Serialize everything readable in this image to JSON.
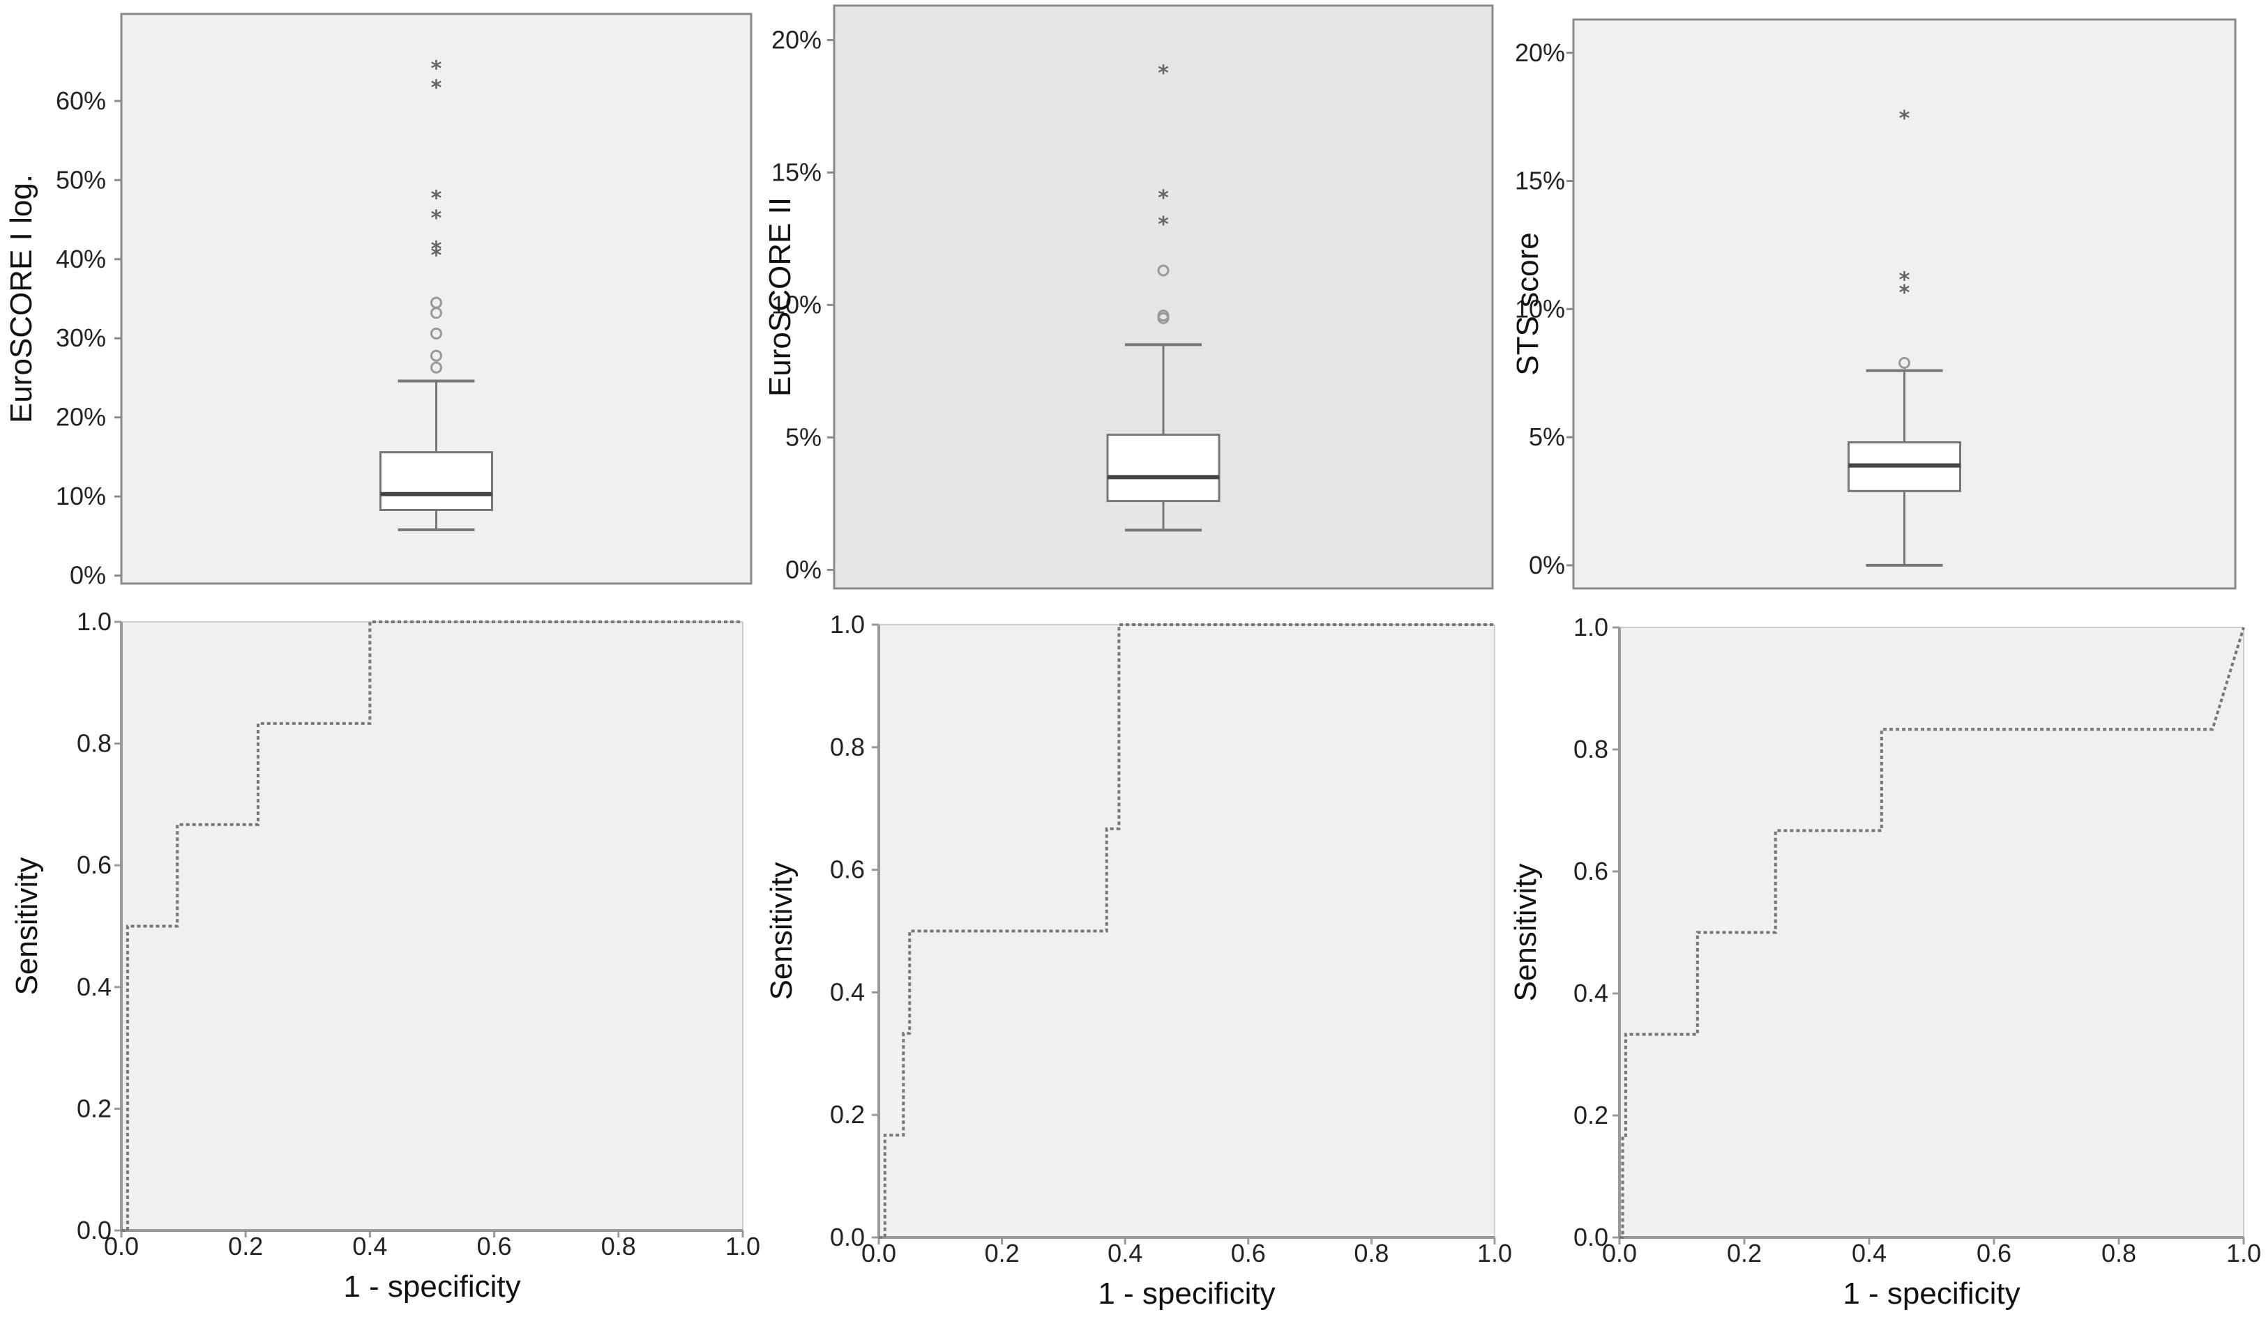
{
  "chart_data": [
    {
      "type": "boxplot",
      "ylabel": "EuroSCORE I log.",
      "xlabel": "",
      "ylim": [
        -1,
        71
      ],
      "yticks": [
        0,
        10,
        20,
        30,
        40,
        50,
        60
      ],
      "ytick_labels": [
        "0%",
        "10%",
        "20%",
        "30%",
        "40%",
        "50%",
        "60%"
      ],
      "box": {
        "whisker_low": 5.8,
        "q1": 8.3,
        "median": 10.3,
        "q3": 15.6,
        "whisker_high": 24.6
      },
      "outliers": [
        26.3,
        27.8,
        30.6,
        33.2,
        34.5
      ],
      "extremes": [
        41.0,
        41.8,
        45.7,
        48.2,
        62.2,
        64.6
      ],
      "background": "#f0f0f0"
    },
    {
      "type": "boxplot",
      "ylabel": "EuroSCORE II",
      "xlabel": "",
      "ylim": [
        -0.7,
        21.3
      ],
      "yticks": [
        0,
        5,
        10,
        15,
        20
      ],
      "ytick_labels": [
        "0%",
        "5%",
        "10%",
        "15%",
        "20%"
      ],
      "box": {
        "whisker_low": 1.5,
        "q1": 2.6,
        "median": 3.5,
        "q3": 5.1,
        "whisker_high": 8.5
      },
      "outliers": [
        9.5,
        9.6,
        11.3
      ],
      "extremes": [
        13.2,
        14.2,
        18.9
      ],
      "background": "#e6e6e6"
    },
    {
      "type": "boxplot",
      "ylabel": "STS score",
      "xlabel": "",
      "ylim": [
        -0.9,
        21.3
      ],
      "yticks": [
        0,
        5,
        10,
        15,
        20
      ],
      "ytick_labels": [
        "0%",
        "5%",
        "10%",
        "15%",
        "20%"
      ],
      "box": {
        "whisker_low": 0.0,
        "q1": 2.9,
        "median": 3.9,
        "q3": 4.8,
        "whisker_high": 7.6
      },
      "outliers": [
        7.9
      ],
      "extremes": [
        10.8,
        11.3,
        17.6
      ],
      "background": "#f0f0f0"
    },
    {
      "type": "line",
      "xlabel": "1 - specificity",
      "ylabel": "Sensitivity",
      "xlim": [
        0,
        1
      ],
      "ylim": [
        0,
        1
      ],
      "xticks": [
        "0.0",
        "0.2",
        "0.4",
        "0.6",
        "0.8",
        "1.0"
      ],
      "yticks": [
        "0.0",
        "0.2",
        "0.4",
        "0.6",
        "0.8",
        "1.0"
      ],
      "series": [
        {
          "x": [
            0,
            0.01,
            0.01,
            0.09,
            0.09,
            0.22,
            0.22,
            0.4,
            0.4,
            1.0
          ],
          "y": [
            0,
            0,
            0.5,
            0.5,
            0.667,
            0.667,
            0.833,
            0.833,
            1.0,
            1.0
          ]
        }
      ],
      "background": "#f0f0f0"
    },
    {
      "type": "line",
      "xlabel": "1 - specificity",
      "ylabel": "Sensitivity",
      "xlim": [
        0,
        1
      ],
      "ylim": [
        0,
        1
      ],
      "xticks": [
        "0.0",
        "0.2",
        "0.4",
        "0.6",
        "0.8",
        "1.0"
      ],
      "yticks": [
        "0.0",
        "0.2",
        "0.4",
        "0.6",
        "0.8",
        "1.0"
      ],
      "series": [
        {
          "x": [
            0,
            0.01,
            0.01,
            0.04,
            0.04,
            0.05,
            0.05,
            0.37,
            0.37,
            0.39,
            0.39,
            1.0
          ],
          "y": [
            0,
            0,
            0.167,
            0.167,
            0.333,
            0.333,
            0.5,
            0.5,
            0.667,
            0.667,
            1.0,
            1.0
          ]
        }
      ],
      "background": "#f0f0f0"
    },
    {
      "type": "line",
      "xlabel": "1 - specificity",
      "ylabel": "Sensitivity",
      "xlim": [
        0,
        1
      ],
      "ylim": [
        0,
        1
      ],
      "xticks": [
        "0.0",
        "0.2",
        "0.4",
        "0.6",
        "0.8",
        "1.0"
      ],
      "yticks": [
        "0.0",
        "0.2",
        "0.4",
        "0.6",
        "0.8",
        "1.0"
      ],
      "series": [
        {
          "x": [
            0,
            0.005,
            0.005,
            0.01,
            0.01,
            0.125,
            0.125,
            0.25,
            0.25,
            0.42,
            0.42,
            0.95,
            1.0
          ],
          "y": [
            0,
            0,
            0.167,
            0.167,
            0.333,
            0.333,
            0.5,
            0.5,
            0.667,
            0.667,
            0.833,
            0.833,
            1.0
          ]
        }
      ],
      "background": "#f0f0f0"
    }
  ],
  "colors": {
    "frame": "#8a8a8a",
    "box_fill": "#ffffff",
    "whisker": "#777777",
    "median": "#444444",
    "roc_line": "#777777",
    "axis": "#999999",
    "outlier": "#999999",
    "extreme": "#666666"
  }
}
